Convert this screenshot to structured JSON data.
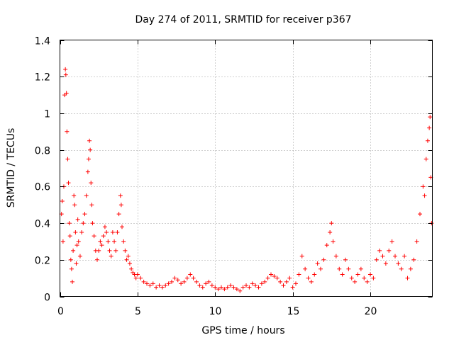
{
  "chart_data": {
    "type": "scatter",
    "title": "Day 274 of 2011, SRMTID for receiver p367",
    "xlabel": "GPS time / hours",
    "ylabel": "SRMTID / TECUs",
    "xlim": [
      0,
      24
    ],
    "ylim": [
      0,
      1.4
    ],
    "xticks": [
      0,
      5,
      10,
      15,
      20
    ],
    "xtick_labels": [
      "0",
      "5",
      "10",
      "15",
      "20"
    ],
    "yticks": [
      0,
      0.2,
      0.4,
      0.6,
      0.8,
      1.0,
      1.2,
      1.4
    ],
    "ytick_labels": [
      "0",
      "0.2",
      "0.4",
      "0.6",
      "0.8",
      "1",
      "1.2",
      "1.4"
    ],
    "grid": true,
    "marker": "plus",
    "color": "#ff0000",
    "series": [
      {
        "name": "SRMTID",
        "points": [
          [
            0.1,
            0.45
          ],
          [
            0.15,
            0.52
          ],
          [
            0.2,
            0.3
          ],
          [
            0.25,
            0.6
          ],
          [
            0.3,
            1.1
          ],
          [
            0.35,
            1.24
          ],
          [
            0.38,
            1.21
          ],
          [
            0.42,
            1.11
          ],
          [
            0.45,
            0.9
          ],
          [
            0.5,
            0.75
          ],
          [
            0.55,
            0.62
          ],
          [
            0.6,
            0.4
          ],
          [
            0.65,
            0.33
          ],
          [
            0.7,
            0.2
          ],
          [
            0.75,
            0.15
          ],
          [
            0.8,
            0.08
          ],
          [
            0.85,
            0.25
          ],
          [
            0.9,
            0.55
          ],
          [
            0.95,
            0.5
          ],
          [
            1.0,
            0.35
          ],
          [
            1.05,
            0.18
          ],
          [
            1.1,
            0.28
          ],
          [
            1.15,
            0.42
          ],
          [
            1.2,
            0.3
          ],
          [
            1.3,
            0.22
          ],
          [
            1.4,
            0.35
          ],
          [
            1.5,
            0.4
          ],
          [
            1.6,
            0.45
          ],
          [
            1.7,
            0.55
          ],
          [
            1.8,
            0.68
          ],
          [
            1.85,
            0.75
          ],
          [
            1.9,
            0.85
          ],
          [
            1.95,
            0.8
          ],
          [
            2.0,
            0.62
          ],
          [
            2.05,
            0.5
          ],
          [
            2.1,
            0.4
          ],
          [
            2.2,
            0.33
          ],
          [
            2.3,
            0.25
          ],
          [
            2.4,
            0.2
          ],
          [
            2.5,
            0.25
          ],
          [
            2.6,
            0.3
          ],
          [
            2.7,
            0.28
          ],
          [
            2.8,
            0.33
          ],
          [
            2.9,
            0.38
          ],
          [
            3.0,
            0.35
          ],
          [
            3.1,
            0.3
          ],
          [
            3.2,
            0.25
          ],
          [
            3.3,
            0.22
          ],
          [
            3.4,
            0.35
          ],
          [
            3.5,
            0.3
          ],
          [
            3.6,
            0.25
          ],
          [
            3.7,
            0.35
          ],
          [
            3.8,
            0.45
          ],
          [
            3.9,
            0.55
          ],
          [
            3.95,
            0.5
          ],
          [
            4.0,
            0.38
          ],
          [
            4.1,
            0.3
          ],
          [
            4.2,
            0.25
          ],
          [
            4.3,
            0.2
          ],
          [
            4.4,
            0.22
          ],
          [
            4.5,
            0.18
          ],
          [
            4.6,
            0.15
          ],
          [
            4.7,
            0.13
          ],
          [
            4.8,
            0.12
          ],
          [
            4.9,
            0.1
          ],
          [
            5.0,
            0.12
          ],
          [
            5.2,
            0.1
          ],
          [
            5.4,
            0.08
          ],
          [
            5.6,
            0.07
          ],
          [
            5.8,
            0.06
          ],
          [
            6.0,
            0.07
          ],
          [
            6.2,
            0.05
          ],
          [
            6.4,
            0.06
          ],
          [
            6.6,
            0.05
          ],
          [
            6.8,
            0.06
          ],
          [
            7.0,
            0.07
          ],
          [
            7.2,
            0.08
          ],
          [
            7.4,
            0.1
          ],
          [
            7.6,
            0.09
          ],
          [
            7.8,
            0.07
          ],
          [
            8.0,
            0.08
          ],
          [
            8.2,
            0.1
          ],
          [
            8.4,
            0.12
          ],
          [
            8.6,
            0.1
          ],
          [
            8.8,
            0.08
          ],
          [
            9.0,
            0.06
          ],
          [
            9.2,
            0.05
          ],
          [
            9.4,
            0.07
          ],
          [
            9.6,
            0.08
          ],
          [
            9.8,
            0.06
          ],
          [
            10.0,
            0.05
          ],
          [
            10.2,
            0.04
          ],
          [
            10.4,
            0.05
          ],
          [
            10.6,
            0.04
          ],
          [
            10.8,
            0.05
          ],
          [
            11.0,
            0.06
          ],
          [
            11.2,
            0.05
          ],
          [
            11.4,
            0.04
          ],
          [
            11.6,
            0.03
          ],
          [
            11.8,
            0.05
          ],
          [
            12.0,
            0.06
          ],
          [
            12.2,
            0.05
          ],
          [
            12.4,
            0.07
          ],
          [
            12.6,
            0.06
          ],
          [
            12.8,
            0.05
          ],
          [
            13.0,
            0.07
          ],
          [
            13.2,
            0.08
          ],
          [
            13.4,
            0.1
          ],
          [
            13.6,
            0.12
          ],
          [
            13.8,
            0.11
          ],
          [
            14.0,
            0.1
          ],
          [
            14.2,
            0.08
          ],
          [
            14.4,
            0.06
          ],
          [
            14.6,
            0.08
          ],
          [
            14.8,
            0.1
          ],
          [
            15.0,
            0.05
          ],
          [
            15.2,
            0.07
          ],
          [
            15.4,
            0.12
          ],
          [
            15.6,
            0.22
          ],
          [
            15.8,
            0.15
          ],
          [
            16.0,
            0.1
          ],
          [
            16.2,
            0.08
          ],
          [
            16.4,
            0.12
          ],
          [
            16.6,
            0.18
          ],
          [
            16.8,
            0.15
          ],
          [
            17.0,
            0.2
          ],
          [
            17.2,
            0.28
          ],
          [
            17.4,
            0.35
          ],
          [
            17.5,
            0.4
          ],
          [
            17.6,
            0.3
          ],
          [
            17.8,
            0.22
          ],
          [
            18.0,
            0.15
          ],
          [
            18.2,
            0.12
          ],
          [
            18.4,
            0.2
          ],
          [
            18.6,
            0.15
          ],
          [
            18.8,
            0.1
          ],
          [
            19.0,
            0.08
          ],
          [
            19.2,
            0.12
          ],
          [
            19.4,
            0.15
          ],
          [
            19.6,
            0.1
          ],
          [
            19.8,
            0.08
          ],
          [
            20.0,
            0.12
          ],
          [
            20.2,
            0.1
          ],
          [
            20.4,
            0.2
          ],
          [
            20.6,
            0.25
          ],
          [
            20.8,
            0.22
          ],
          [
            21.0,
            0.18
          ],
          [
            21.2,
            0.25
          ],
          [
            21.4,
            0.3
          ],
          [
            21.6,
            0.22
          ],
          [
            21.8,
            0.18
          ],
          [
            22.0,
            0.15
          ],
          [
            22.2,
            0.22
          ],
          [
            22.4,
            0.1
          ],
          [
            22.6,
            0.15
          ],
          [
            22.8,
            0.2
          ],
          [
            23.0,
            0.3
          ],
          [
            23.2,
            0.45
          ],
          [
            23.4,
            0.6
          ],
          [
            23.5,
            0.55
          ],
          [
            23.6,
            0.75
          ],
          [
            23.7,
            0.85
          ],
          [
            23.8,
            0.92
          ],
          [
            23.85,
            0.98
          ],
          [
            23.9,
            0.65
          ],
          [
            23.95,
            0.4
          ]
        ]
      }
    ]
  }
}
